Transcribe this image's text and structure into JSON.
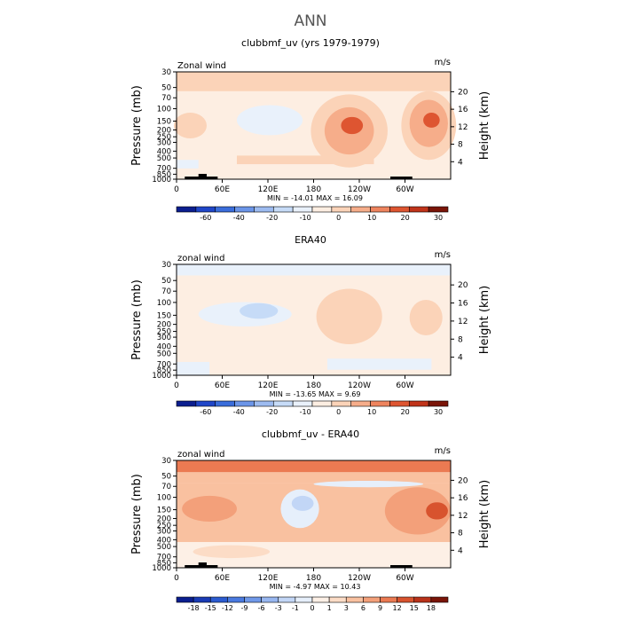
{
  "figure": {
    "title": "ANN"
  },
  "chart_data": [
    {
      "type": "contour",
      "title": "clubbmf_uv (yrs 1979-1979)",
      "left_label": "Zonal wind",
      "units": "m/s",
      "ylabel": "Pressure (mb)",
      "ylabel_right": "Height (km)",
      "pressure_ticks": [
        "30",
        "50",
        "70",
        "100",
        "150",
        "200",
        "250",
        "300",
        "400",
        "500",
        "700",
        "850",
        "1000"
      ],
      "height_ticks": [
        "20",
        "16",
        "12",
        "8",
        "4"
      ],
      "longitude_ticks": [
        "0",
        "60E",
        "120E",
        "180",
        "120W",
        "60W"
      ],
      "stats": "MIN = -14.01   MAX =  16.09",
      "colorbar_levels": [
        "-60",
        "-40",
        "-20",
        "-10",
        "0",
        "10",
        "20",
        "30"
      ],
      "colorbar_colors": [
        "#0b1e8f",
        "#1f46c8",
        "#3a6ddb",
        "#6b95e8",
        "#9dbbf0",
        "#c6dbf7",
        "#e9f1fb",
        "#fdeee2",
        "#fbd3b8",
        "#f6ad8a",
        "#ee845e",
        "#de5531",
        "#c0341a",
        "#7a1508"
      ]
    },
    {
      "type": "contour",
      "title": "ERA40",
      "left_label": "zonal wind",
      "units": "m/s",
      "ylabel": "Pressure (mb)",
      "ylabel_right": "Height (km)",
      "pressure_ticks": [
        "30",
        "50",
        "70",
        "100",
        "150",
        "200",
        "250",
        "300",
        "400",
        "500",
        "700",
        "850",
        "1000"
      ],
      "height_ticks": [
        "20",
        "16",
        "12",
        "8",
        "4"
      ],
      "longitude_ticks": [
        "0",
        "60E",
        "120E",
        "180",
        "120W",
        "60W"
      ],
      "stats": "MIN = -13.65   MAX =   9.69",
      "colorbar_levels": [
        "-60",
        "-40",
        "-20",
        "-10",
        "0",
        "10",
        "20",
        "30"
      ],
      "colorbar_colors": [
        "#0b1e8f",
        "#1f46c8",
        "#3a6ddb",
        "#6b95e8",
        "#9dbbf0",
        "#c6dbf7",
        "#e9f1fb",
        "#fdeee2",
        "#fbd3b8",
        "#f6ad8a",
        "#ee845e",
        "#de5531",
        "#c0341a",
        "#7a1508"
      ]
    },
    {
      "type": "contour",
      "title": "clubbmf_uv - ERA40",
      "left_label": "zonal wind",
      "units": "m/s",
      "ylabel": "Pressure (mb)",
      "ylabel_right": "Height (km)",
      "pressure_ticks": [
        "30",
        "50",
        "70",
        "100",
        "150",
        "200",
        "250",
        "300",
        "400",
        "500",
        "700",
        "850",
        "1000"
      ],
      "height_ticks": [
        "20",
        "16",
        "12",
        "8",
        "4"
      ],
      "longitude_ticks": [
        "0",
        "60E",
        "120E",
        "180",
        "120W",
        "60W"
      ],
      "stats": "MIN =  -4.97   MAX =  10.43",
      "colorbar_levels": [
        "-18",
        "-15",
        "-12",
        "-9",
        "-6",
        "-3",
        "-1",
        "0",
        "1",
        "3",
        "6",
        "9",
        "12",
        "15",
        "18"
      ],
      "colorbar_colors": [
        "#0b1e8f",
        "#1a3bb5",
        "#2c5bd0",
        "#4a7ae0",
        "#7099e9",
        "#98b7f0",
        "#c2d6f6",
        "#e6effb",
        "#fdf0e6",
        "#fcdcc6",
        "#f9c1a0",
        "#f3a07a",
        "#eb7a52",
        "#d8532e",
        "#b9321a",
        "#7a1508"
      ]
    }
  ]
}
